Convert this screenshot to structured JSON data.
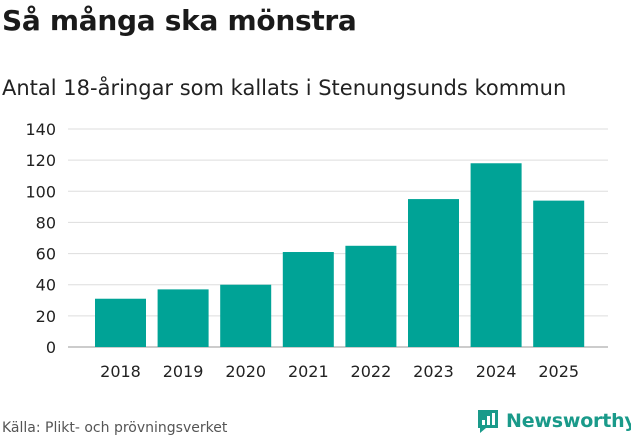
{
  "title": "Så många ska mönstra",
  "subtitle": "Antal 18-åringar som kallats i Stenungsunds kommun",
  "source": "Källa: Plikt- och prövningsverket",
  "brand": "Newsworthy",
  "colors": {
    "bar": "#00a396",
    "grid": "#dddddd",
    "brand": "#1a9a8a"
  },
  "chart_data": {
    "type": "bar",
    "title": "Så många ska mönstra",
    "subtitle": "Antal 18-åringar som kallats i Stenungsunds kommun",
    "xlabel": "",
    "ylabel": "",
    "categories": [
      "2018",
      "2019",
      "2020",
      "2021",
      "2022",
      "2023",
      "2024",
      "2025"
    ],
    "values": [
      31,
      37,
      40,
      61,
      65,
      95,
      118,
      94
    ],
    "ylim": [
      0,
      140
    ],
    "yticks": [
      "0",
      "20",
      "40",
      "60",
      "80",
      "100",
      "120",
      "140"
    ],
    "grid": true
  }
}
